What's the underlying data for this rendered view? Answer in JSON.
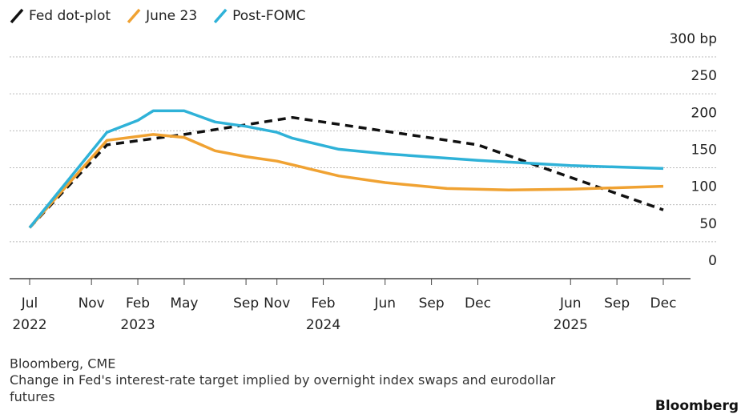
{
  "chart_data": {
    "type": "line",
    "series": [
      {
        "name": "Fed dot-plot",
        "color": "#111111",
        "style": "dashed",
        "x": [
          "2022-07",
          "2022-12",
          "2023-05",
          "2023-12",
          "2024-12",
          "2025-12"
        ],
        "values": [
          69,
          181,
          195,
          218,
          181,
          93
        ]
      },
      {
        "name": "June 23",
        "color": "#f0a232",
        "style": "solid",
        "x": [
          "2022-07",
          "2022-12",
          "2023-03",
          "2023-05",
          "2023-07",
          "2023-09",
          "2023-11",
          "2024-01",
          "2024-03",
          "2024-06",
          "2024-10",
          "2025-02",
          "2025-06",
          "2025-12"
        ],
        "values": [
          69,
          187,
          195,
          191,
          173,
          165,
          159,
          149,
          139,
          130,
          122,
          120,
          121,
          125
        ]
      },
      {
        "name": "Post-FOMC",
        "color": "#2fb2d8",
        "style": "solid",
        "x": [
          "2022-07",
          "2022-12",
          "2023-02",
          "2023-03",
          "2023-05",
          "2023-07",
          "2023-09",
          "2023-11",
          "2023-12",
          "2024-03",
          "2024-06",
          "2024-12",
          "2025-06",
          "2025-12"
        ],
        "values": [
          69,
          198,
          214,
          227,
          227,
          212,
          206,
          198,
          190,
          175,
          169,
          160,
          153,
          149
        ]
      }
    ],
    "xlim": [
      "2022-07",
      "2025-12"
    ],
    "xticks": [
      {
        "value": "2022-07",
        "label": "Jul"
      },
      {
        "value": "2022-11",
        "label": "Nov"
      },
      {
        "value": "2023-02",
        "label": "Feb"
      },
      {
        "value": "2023-05",
        "label": "May"
      },
      {
        "value": "2023-09",
        "label": "Sep"
      },
      {
        "value": "2023-11",
        "label": "Nov"
      },
      {
        "value": "2024-02",
        "label": "Feb"
      },
      {
        "value": "2024-06",
        "label": "Jun"
      },
      {
        "value": "2024-09",
        "label": "Sep"
      },
      {
        "value": "2024-12",
        "label": "Dec"
      },
      {
        "value": "2025-06",
        "label": "Jun"
      },
      {
        "value": "2025-09",
        "label": "Sep"
      },
      {
        "value": "2025-12",
        "label": "Dec"
      }
    ],
    "xtick_years": [
      {
        "value": "2022-07",
        "label": "2022"
      },
      {
        "value": "2023-02",
        "label": "2023"
      },
      {
        "value": "2024-02",
        "label": "2024"
      },
      {
        "value": "2025-06",
        "label": "2025"
      }
    ],
    "ylim": [
      0,
      300
    ],
    "yticks": [
      0,
      50,
      100,
      150,
      200,
      250,
      {
        "value": 300,
        "label": "300 bp"
      }
    ],
    "grid": true,
    "source": "Bloomberg, CME",
    "note": "Change in Fed's interest-rate target implied by overnight index swaps and eurodollar futures",
    "brand": "Bloomberg"
  }
}
